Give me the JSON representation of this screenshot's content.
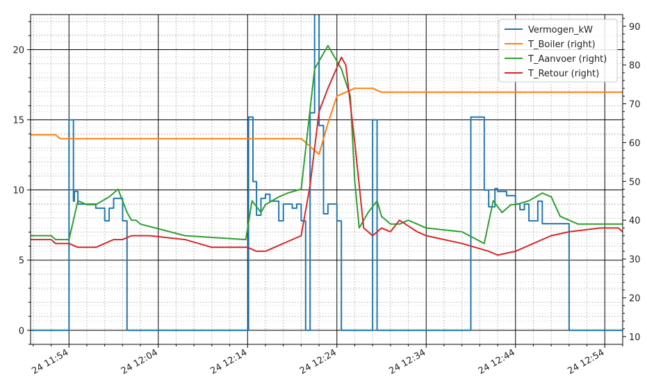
{
  "chart_data": {
    "type": "line",
    "x_unit": "time (day 24, HH:MM)",
    "xlim": [
      "11:49.7",
      "12:56.0"
    ],
    "x_tick_labels": [
      "24 11:54",
      "24 12:04",
      "24 12:14",
      "24 12:24",
      "24 12:34",
      "24 12:44",
      "24 12:54"
    ],
    "x_ticks": [
      54,
      64,
      74,
      84,
      94,
      104,
      114
    ],
    "y_left": {
      "range": [
        -1,
        22.5
      ],
      "ticks": [
        0,
        5,
        10,
        15,
        20
      ]
    },
    "y_right": {
      "range": [
        8,
        93
      ],
      "ticks": [
        10,
        20,
        30,
        40,
        50,
        60,
        70,
        80,
        90
      ]
    },
    "grid": {
      "major": true,
      "minor": true
    },
    "legend": {
      "placement": "top-right",
      "entries": [
        "Vermogen_kW",
        "T_Boiler (right)",
        "T_Aanvoer (right)",
        "T_Retour (right)"
      ]
    },
    "series": [
      {
        "name": "Vermogen_kW",
        "axis": "left",
        "color": "#1f77b4",
        "step": true,
        "x": [
          49.7,
          54.0,
          54.5,
          54.6,
          55.0,
          55.5,
          56.0,
          57.0,
          58.0,
          58.5,
          59.0,
          60.0,
          60.5,
          61.0,
          61.5,
          74.1,
          74.6,
          75.0,
          75.5,
          76.0,
          76.5,
          77.5,
          78.0,
          79.0,
          79.5,
          80.0,
          80.5,
          81.0,
          81.5,
          82.0,
          82.5,
          83.0,
          84.0,
          84.5,
          85.0,
          88.0,
          88.5,
          89.0,
          89.6,
          92.5,
          93.0,
          94.0,
          95.0,
          96.0,
          99.0,
          100.5,
          101.0,
          101.7,
          102.0,
          103.0,
          104.0,
          104.5,
          105.0,
          105.5,
          106.5,
          107.0,
          110.0,
          110.5,
          111.5,
          112.5,
          113.5,
          114.0,
          115.0,
          116.0
        ],
        "y": [
          0,
          15,
          9.2,
          9.9,
          9,
          9,
          9,
          8.7,
          7.8,
          8.7,
          9.4,
          7.8,
          0,
          0,
          0,
          15.2,
          10.6,
          8.2,
          9.4,
          9.7,
          9.2,
          7.8,
          9.0,
          8.7,
          9.0,
          7.8,
          0,
          15.5,
          23,
          14.6,
          8.3,
          9.0,
          7.8,
          0,
          0,
          15,
          0,
          0,
          0,
          0,
          0,
          0,
          0,
          0,
          15.2,
          10,
          8.8,
          10.1,
          9.9,
          9.6,
          9.0,
          8.6,
          9.0,
          7.8,
          9.2,
          7.6,
          0,
          0,
          0,
          0,
          0,
          0,
          0,
          0
        ]
      },
      {
        "name": "T_Boiler (right)",
        "axis": "right",
        "color": "#ff7f0e",
        "step": false,
        "x": [
          49.7,
          52.0,
          52.5,
          53.0,
          55.0,
          60.0,
          70.0,
          80.0,
          81.0,
          82.0,
          83.0,
          84.0,
          85.0,
          86.0,
          87.5,
          88.0,
          89.0,
          90.0,
          100.0,
          116.0
        ],
        "y": [
          62,
          62,
          62,
          61,
          61,
          61,
          61,
          61,
          59,
          57,
          65,
          72,
          73,
          74,
          74,
          74,
          73,
          73,
          73,
          73
        ]
      },
      {
        "name": "T_Aanvoer (right)",
        "axis": "right",
        "color": "#2ca02c",
        "step": false,
        "x": [
          49.7,
          52.0,
          52.5,
          54.0,
          55.0,
          56.0,
          57.0,
          58.5,
          59.5,
          60.5,
          61.0,
          61.5,
          62.0,
          67.0,
          73.8,
          74.5,
          75.5,
          76.0,
          77.5,
          78.5,
          80.0,
          81.5,
          82.5,
          83.0,
          84.5,
          85.5,
          86.0,
          86.5,
          87.5,
          88.5,
          89.0,
          90.0,
          91.0,
          92.0,
          94.0,
          98.0,
          100.5,
          101.5,
          102.5,
          103.5,
          104.0,
          105.5,
          107.0,
          108.0,
          109.0,
          110.0,
          111.0,
          116.0
        ],
        "y": [
          36,
          36,
          35,
          35,
          45,
          44,
          44,
          46,
          48,
          42,
          40,
          40,
          39,
          36,
          35,
          45,
          42,
          44,
          46,
          47,
          48,
          79,
          83,
          85,
          79,
          72,
          50,
          38,
          42,
          45,
          41,
          39,
          39,
          40,
          38,
          37,
          34,
          45,
          42,
          44,
          44,
          45,
          47,
          46,
          41,
          40,
          39,
          39
        ]
      },
      {
        "name": "T_Retour (right)",
        "axis": "right",
        "color": "#d62728",
        "step": false,
        "x": [
          49.7,
          52.0,
          52.5,
          54.0,
          55.0,
          57.0,
          58.0,
          59.0,
          60.0,
          61.0,
          62.0,
          63.0,
          67.0,
          70.0,
          73.0,
          74.0,
          75.0,
          76.0,
          78.0,
          80.0,
          81.0,
          82.0,
          83.0,
          84.5,
          85.0,
          86.0,
          87.0,
          88.0,
          89.0,
          90.0,
          91.0,
          93.0,
          94.0,
          96.0,
          98.0,
          101.0,
          102.0,
          104.0,
          106.0,
          108.0,
          110.0,
          113.5,
          115.5,
          116.0
        ],
        "y": [
          35,
          35,
          34,
          34,
          33,
          33,
          34,
          35,
          35,
          36,
          36,
          36,
          35,
          33,
          33,
          33,
          32,
          32,
          34,
          36,
          49,
          68,
          74,
          82,
          80,
          60,
          38,
          36,
          38,
          37,
          40,
          37,
          36,
          35,
          34,
          32,
          31,
          32,
          34,
          36,
          37,
          38,
          38,
          37
        ]
      }
    ]
  }
}
